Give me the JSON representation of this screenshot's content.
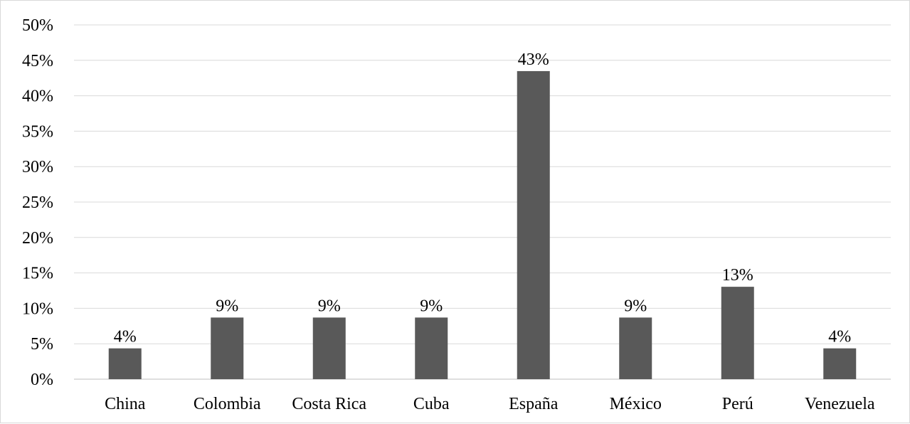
{
  "chart_data": {
    "type": "bar",
    "categories": [
      "China",
      "Colombia",
      "Costa Rica",
      "Cuba",
      "España",
      "México",
      "Perú",
      "Venezuela"
    ],
    "values": [
      4.35,
      8.7,
      8.7,
      8.7,
      43.48,
      8.7,
      13.04,
      4.35
    ],
    "data_labels": [
      "4%",
      "9%",
      "9%",
      "9%",
      "43%",
      "9%",
      "13%",
      "4%"
    ],
    "y_ticks": [
      "0%",
      "5%",
      "10%",
      "15%",
      "20%",
      "25%",
      "30%",
      "35%",
      "40%",
      "45%",
      "50%"
    ],
    "ylim": [
      0,
      50
    ],
    "unit": "%",
    "grid": true,
    "legend": "none",
    "title": "",
    "xlabel": "",
    "ylabel": "",
    "colors": {
      "bar": "#595959",
      "grid": "#d9d9d9",
      "axis": "#bfbfbf",
      "text": "#000000"
    }
  }
}
